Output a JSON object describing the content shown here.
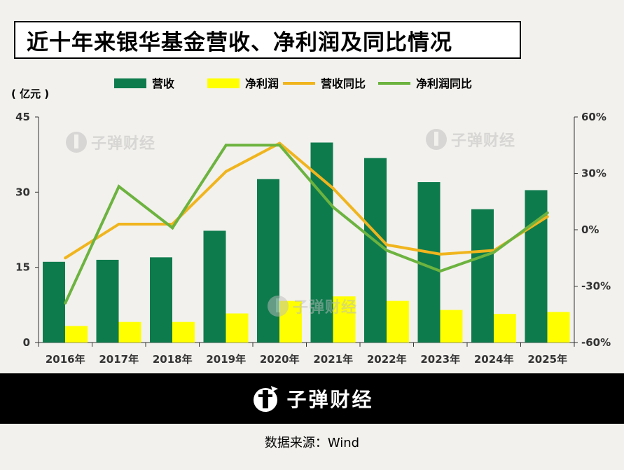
{
  "title": "近十年来银华基金营收、净利润及同比情况",
  "unit_label": "( 亿元 )",
  "source": "数据来源：Wind",
  "brand": "子弹财经",
  "icons": [
    "bullet-logo-icon"
  ],
  "colors": {
    "revenue": "#0e7b4d",
    "profit": "#ffff00",
    "revenue_yoy": "#f0b51e",
    "profit_yoy": "#6cb33f",
    "background": "#f2f1ed"
  },
  "chart_data": {
    "type": "bar",
    "categories": [
      "2016年",
      "2017年",
      "2018年",
      "2019年",
      "2020年",
      "2021年",
      "2022年",
      "2023年",
      "2024年",
      "2025年"
    ],
    "left_axis": {
      "ylim": [
        0,
        45
      ],
      "ticks": [
        "0",
        "15",
        "30",
        "45"
      ]
    },
    "right_axis": {
      "ylim": [
        -60,
        60
      ],
      "ticks": [
        "-60%",
        "-30%",
        "0%",
        "30%",
        "60%"
      ]
    },
    "legend_position": "top",
    "grid": false,
    "series": [
      {
        "name": "营收",
        "type": "bar",
        "axis": "left",
        "values": [
          16.1,
          16.5,
          17.0,
          22.3,
          32.6,
          39.9,
          36.8,
          32.0,
          26.6,
          30.4
        ]
      },
      {
        "name": "净利润",
        "type": "bar",
        "axis": "left",
        "values": [
          3.3,
          4.1,
          4.1,
          5.8,
          8.3,
          9.2,
          8.3,
          6.5,
          5.7,
          6.1
        ]
      },
      {
        "name": "营收同比",
        "type": "line",
        "axis": "right",
        "values": [
          -15,
          3,
          3,
          31,
          46,
          22,
          -8,
          -13,
          -11,
          7
        ]
      },
      {
        "name": "净利润同比",
        "type": "line",
        "axis": "right",
        "values": [
          -39,
          23,
          1,
          45,
          45,
          12,
          -11,
          -22,
          -12,
          9
        ]
      }
    ]
  }
}
